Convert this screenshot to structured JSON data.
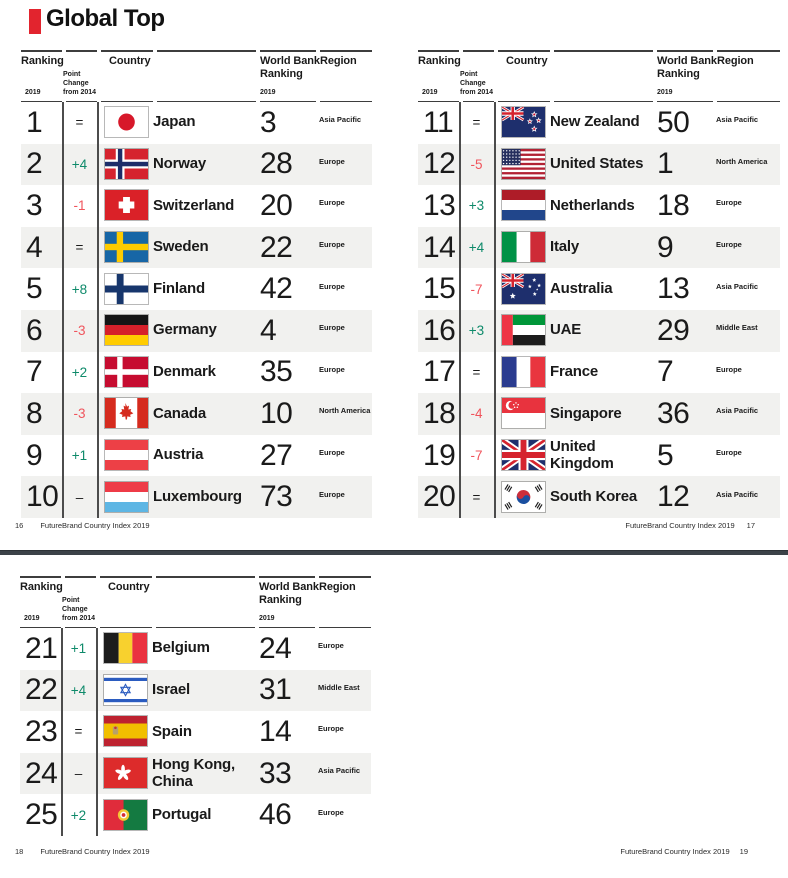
{
  "page": {
    "title": "Global Top"
  },
  "colors": {
    "accent": "#e2242e",
    "positive": "#0e8a6a",
    "negative": "#f0545c",
    "row_alt": "#f1f1ef"
  },
  "labels": {
    "ranking": "Ranking",
    "country": "Country",
    "world_bank": "World Bank Ranking",
    "region": "Region",
    "year": "2019",
    "point_change": "Point Change from 2014"
  },
  "footers": [
    {
      "page_number": "16",
      "text": "FutureBrand Country Index 2019"
    },
    {
      "page_number": "17",
      "text": "FutureBrand Country Index 2019"
    },
    {
      "page_number": "18",
      "text": "FutureBrand Country Index 2019"
    },
    {
      "page_number": "19",
      "text": "FutureBrand Country Index 2019"
    }
  ],
  "tables": [
    {
      "rows": [
        {
          "rank": "1",
          "change": "=",
          "change_type": "same",
          "flag": "japan",
          "country": "Japan",
          "world_bank": "3",
          "region": "Asia Pacific"
        },
        {
          "rank": "2",
          "change": "+4",
          "change_type": "up",
          "flag": "norway",
          "country": "Norway",
          "world_bank": "28",
          "region": "Europe"
        },
        {
          "rank": "3",
          "change": "-1",
          "change_type": "down",
          "flag": "switzerland",
          "country": "Switzerland",
          "world_bank": "20",
          "region": "Europe"
        },
        {
          "rank": "4",
          "change": "=",
          "change_type": "same",
          "flag": "sweden",
          "country": "Sweden",
          "world_bank": "22",
          "region": "Europe"
        },
        {
          "rank": "5",
          "change": "+8",
          "change_type": "up",
          "flag": "finland",
          "country": "Finland",
          "world_bank": "42",
          "region": "Europe"
        },
        {
          "rank": "6",
          "change": "-3",
          "change_type": "down",
          "flag": "germany",
          "country": "Germany",
          "world_bank": "4",
          "region": "Europe"
        },
        {
          "rank": "7",
          "change": "+2",
          "change_type": "up",
          "flag": "denmark",
          "country": "Denmark",
          "world_bank": "35",
          "region": "Europe"
        },
        {
          "rank": "8",
          "change": "-3",
          "change_type": "down",
          "flag": "canada",
          "country": "Canada",
          "world_bank": "10",
          "region": "North America"
        },
        {
          "rank": "9",
          "change": "+1",
          "change_type": "up",
          "flag": "austria",
          "country": "Austria",
          "world_bank": "27",
          "region": "Europe"
        },
        {
          "rank": "10",
          "change": "–",
          "change_type": "none",
          "flag": "luxembourg",
          "country": "Luxembourg",
          "world_bank": "73",
          "region": "Europe"
        }
      ]
    },
    {
      "rows": [
        {
          "rank": "11",
          "change": "=",
          "change_type": "same",
          "flag": "newzealand",
          "country": "New Zealand",
          "world_bank": "50",
          "region": "Asia Pacific"
        },
        {
          "rank": "12",
          "change": "-5",
          "change_type": "down",
          "flag": "us",
          "country": "United States",
          "world_bank": "1",
          "region": "North America"
        },
        {
          "rank": "13",
          "change": "+3",
          "change_type": "up",
          "flag": "netherlands",
          "country": "Netherlands",
          "world_bank": "18",
          "region": "Europe"
        },
        {
          "rank": "14",
          "change": "+4",
          "change_type": "up",
          "flag": "italy",
          "country": "Italy",
          "world_bank": "9",
          "region": "Europe"
        },
        {
          "rank": "15",
          "change": "-7",
          "change_type": "down",
          "flag": "australia",
          "country": "Australia",
          "world_bank": "13",
          "region": "Asia Pacific"
        },
        {
          "rank": "16",
          "change": "+3",
          "change_type": "up",
          "flag": "uae",
          "country": "UAE",
          "world_bank": "29",
          "region": "Middle East"
        },
        {
          "rank": "17",
          "change": "=",
          "change_type": "same",
          "flag": "france",
          "country": "France",
          "world_bank": "7",
          "region": "Europe"
        },
        {
          "rank": "18",
          "change": "-4",
          "change_type": "down",
          "flag": "singapore",
          "country": "Singapore",
          "world_bank": "36",
          "region": "Asia Pacific"
        },
        {
          "rank": "19",
          "change": "-7",
          "change_type": "down",
          "flag": "uk",
          "country": "United Kingdom",
          "world_bank": "5",
          "region": "Europe"
        },
        {
          "rank": "20",
          "change": "=",
          "change_type": "same",
          "flag": "southkorea",
          "country": "South Korea",
          "world_bank": "12",
          "region": "Asia Pacific"
        }
      ]
    },
    {
      "rows": [
        {
          "rank": "21",
          "change": "+1",
          "change_type": "up",
          "flag": "belgium",
          "country": "Belgium",
          "world_bank": "24",
          "region": "Europe"
        },
        {
          "rank": "22",
          "change": "+4",
          "change_type": "up",
          "flag": "israel",
          "country": "Israel",
          "world_bank": "31",
          "region": "Middle East"
        },
        {
          "rank": "23",
          "change": "=",
          "change_type": "same",
          "flag": "spain",
          "country": "Spain",
          "world_bank": "14",
          "region": "Europe"
        },
        {
          "rank": "24",
          "change": "–",
          "change_type": "none",
          "flag": "hongkong",
          "country": "Hong Kong, China",
          "world_bank": "33",
          "region": "Asia Pacific"
        },
        {
          "rank": "25",
          "change": "+2",
          "change_type": "up",
          "flag": "portugal",
          "country": "Portugal",
          "world_bank": "46",
          "region": "Europe"
        }
      ]
    }
  ]
}
